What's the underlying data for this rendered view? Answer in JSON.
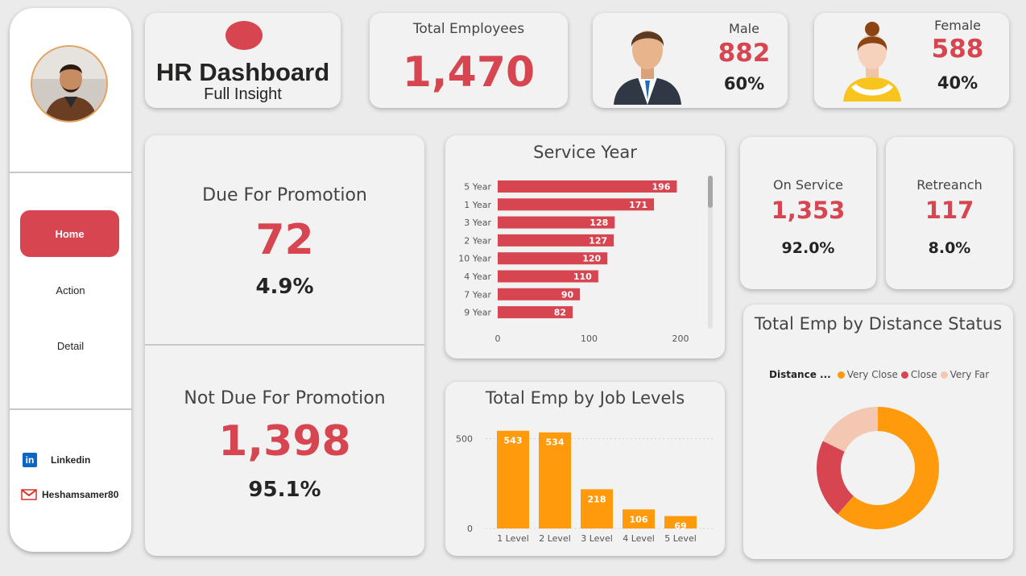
{
  "sidebar": {
    "nav": [
      {
        "label": "Home",
        "active": true
      },
      {
        "label": "Action",
        "active": false
      },
      {
        "label": "Detail",
        "active": false
      }
    ],
    "social": [
      {
        "icon": "linkedin-icon",
        "label": "Linkedin"
      },
      {
        "icon": "gmail-icon",
        "label": "Heshamsamer80"
      }
    ]
  },
  "header": {
    "title": "HR Dashboard",
    "subtitle": "Full Insight"
  },
  "kpis": {
    "total_employees": {
      "label": "Total Employees",
      "value": "1,470"
    },
    "male": {
      "label": "Male",
      "value": "882",
      "pct": "60%"
    },
    "female": {
      "label": "Female",
      "value": "588",
      "pct": "40%"
    },
    "due_promotion": {
      "label": "Due For Promotion",
      "value": "72",
      "pct": "4.9%"
    },
    "not_due_promotion": {
      "label": "Not Due For Promotion",
      "value": "1,398",
      "pct": "95.1%"
    },
    "on_service": {
      "label": "On Service",
      "value": "1,353",
      "pct": "92.0%"
    },
    "retreanch": {
      "label": "Retreanch",
      "value": "117",
      "pct": "8.0%"
    }
  },
  "colors": {
    "accent": "#d64550",
    "orange": "#ff9a0d",
    "peach": "#f4c7b2"
  },
  "chart_data": [
    {
      "id": "service",
      "type": "bar",
      "orientation": "horizontal",
      "title": "Service Year",
      "categories": [
        "5 Year",
        "1 Year",
        "3 Year",
        "2 Year",
        "10 Year",
        "4 Year",
        "7 Year",
        "9 Year"
      ],
      "values": [
        196,
        171,
        128,
        127,
        120,
        110,
        90,
        82
      ],
      "xlim": [
        0,
        200
      ],
      "xticks": [
        0,
        100,
        200
      ],
      "color": "#d64550"
    },
    {
      "id": "joblevel",
      "type": "bar",
      "title": "Total Emp by Job Levels",
      "categories": [
        "1 Level",
        "2 Level",
        "3 Level",
        "4 Level",
        "5 Level"
      ],
      "values": [
        543,
        534,
        218,
        106,
        69
      ],
      "ylim": [
        0,
        600
      ],
      "yticks": [
        0,
        500
      ],
      "color": "#ff9a0d"
    },
    {
      "id": "distance",
      "type": "pie",
      "donut": true,
      "title": "Total Emp by Distance Status",
      "legend_title": "Distance ...",
      "labels": [
        "Very Close",
        "Close",
        "Very Far"
      ],
      "values": [
        61.4,
        20.9,
        17.7
      ],
      "colors": [
        "#ff9a0d",
        "#d64550",
        "#f4c7b2"
      ]
    }
  ]
}
